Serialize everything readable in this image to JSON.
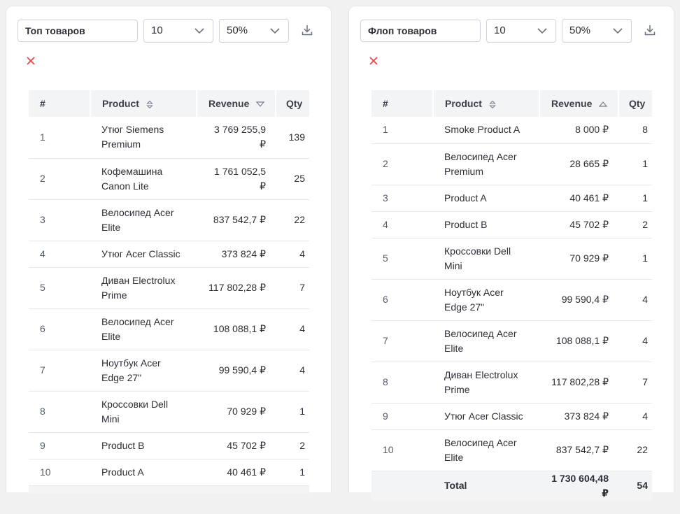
{
  "colors": {
    "accent_red": "#e5484d",
    "header_bg": "#f3f4f6"
  },
  "left": {
    "title": "Топ товаров",
    "count": "10",
    "percent": "50%",
    "headers": {
      "num": "#",
      "product": "Product",
      "revenue": "Revenue",
      "qty": "Qty"
    },
    "revenue_sort": "descending",
    "rows": [
      {
        "n": "1",
        "product": "Утюг Siemens Premium",
        "revenue": "3 769 255,9 ₽",
        "qty": "139"
      },
      {
        "n": "2",
        "product": "Кофемашина Canon Lite",
        "revenue": "1 761 052,5 ₽",
        "qty": "25"
      },
      {
        "n": "3",
        "product": "Велосипед Acer Elite",
        "revenue": "837 542,7 ₽",
        "qty": "22"
      },
      {
        "n": "4",
        "product": "Утюг Acer Classic",
        "revenue": "373 824 ₽",
        "qty": "4"
      },
      {
        "n": "5",
        "product": "Диван Electrolux Prime",
        "revenue": "117 802,28 ₽",
        "qty": "7"
      },
      {
        "n": "6",
        "product": "Велосипед Acer Elite",
        "revenue": "108 088,1 ₽",
        "qty": "4"
      },
      {
        "n": "7",
        "product": "Ноутбук Acer Edge 27\"",
        "revenue": "99 590,4 ₽",
        "qty": "4"
      },
      {
        "n": "8",
        "product": "Кроссовки Dell Mini",
        "revenue": "70 929 ₽",
        "qty": "1"
      },
      {
        "n": "9",
        "product": "Product B",
        "revenue": "45 702 ₽",
        "qty": "2"
      },
      {
        "n": "10",
        "product": "Product A",
        "revenue": "40 461 ₽",
        "qty": "1"
      }
    ]
  },
  "right": {
    "title": "Флоп товаров",
    "count": "10",
    "percent": "50%",
    "headers": {
      "num": "#",
      "product": "Product",
      "revenue": "Revenue",
      "qty": "Qty"
    },
    "revenue_sort": "ascending",
    "rows": [
      {
        "n": "1",
        "product": "Smoke Product A",
        "revenue": "8 000 ₽",
        "qty": "8"
      },
      {
        "n": "2",
        "product": "Велосипед Acer Premium",
        "revenue": "28 665 ₽",
        "qty": "1"
      },
      {
        "n": "3",
        "product": "Product A",
        "revenue": "40 461 ₽",
        "qty": "1"
      },
      {
        "n": "4",
        "product": "Product B",
        "revenue": "45 702 ₽",
        "qty": "2"
      },
      {
        "n": "5",
        "product": "Кроссовки Dell Mini",
        "revenue": "70 929 ₽",
        "qty": "1"
      },
      {
        "n": "6",
        "product": "Ноутбук Acer Edge 27\"",
        "revenue": "99 590,4 ₽",
        "qty": "4"
      },
      {
        "n": "7",
        "product": "Велосипед Acer Elite",
        "revenue": "108 088,1 ₽",
        "qty": "4"
      },
      {
        "n": "8",
        "product": "Диван Electrolux Prime",
        "revenue": "117 802,28 ₽",
        "qty": "7"
      },
      {
        "n": "9",
        "product": "Утюг Acer Classic",
        "revenue": "373 824 ₽",
        "qty": "4"
      },
      {
        "n": "10",
        "product": "Велосипед Acer Elite",
        "revenue": "837 542,7 ₽",
        "qty": "22"
      }
    ],
    "total": {
      "label": "Total",
      "revenue": "1 730 604,48 ₽",
      "qty": "54"
    }
  }
}
